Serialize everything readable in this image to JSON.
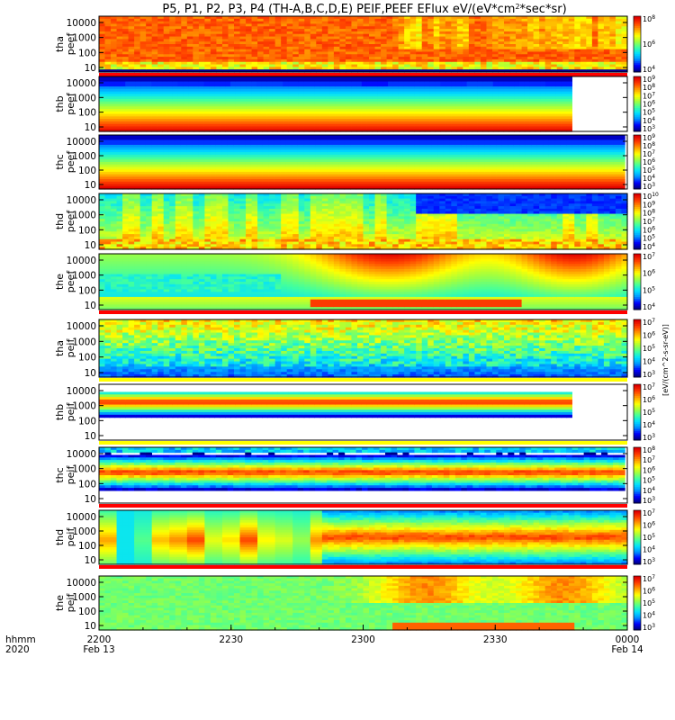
{
  "chart_data": {
    "type": "heatmap",
    "title": "P5, P1, P2, P3, P4 (TH-A,B,C,D,E) PEIF,PEEF EFlux eV/(eV*cm",
    "title_sup": "2",
    "title_tail": "*sec*sr)",
    "x_corner_label": [
      "hhmm",
      "2020"
    ],
    "x_ticks": [
      {
        "label": "2200",
        "sub": "Feb 13",
        "minutes": 0
      },
      {
        "label": "2230",
        "sub": "",
        "minutes": 30
      },
      {
        "label": "2300",
        "sub": "",
        "minutes": 60
      },
      {
        "label": "2330",
        "sub": "",
        "minutes": 90
      },
      {
        "label": "0000",
        "sub": "Feb 14",
        "minutes": 120
      }
    ],
    "x_range_minutes": [
      0,
      120
    ],
    "y_scale": "log",
    "y_ticks": [
      "10",
      "100",
      "1000",
      "10000"
    ],
    "colormap": [
      "#000080",
      "#0000ff",
      "#0090ff",
      "#00e0ff",
      "#40ffa0",
      "#a0ff40",
      "#ffff00",
      "#ffa000",
      "#ff4000",
      "#e00000"
    ],
    "colorbar_label": "[eV/(cm^2-s-sr-eV)]",
    "panels": [
      {
        "ylabel": [
          "tha",
          "peef"
        ],
        "colorbar_exps": [
          4,
          6,
          8
        ],
        "data_end": 1.0,
        "pattern": "hot_top",
        "strip_below": "#ff0000"
      },
      {
        "ylabel": [
          "thb",
          "peef"
        ],
        "colorbar_exps": [
          3,
          4,
          5,
          6,
          7,
          8,
          9
        ],
        "data_end": 0.895,
        "pattern": "bands_flat",
        "strip_below": ""
      },
      {
        "ylabel": [
          "thc",
          "peef"
        ],
        "colorbar_exps": [
          3,
          4,
          5,
          6,
          7,
          8,
          9
        ],
        "data_end": 0.995,
        "pattern": "bands_flat_full",
        "strip_below": ""
      },
      {
        "ylabel": [
          "thd",
          "peef"
        ],
        "colorbar_exps": [
          4,
          5,
          6,
          7,
          8,
          9,
          10
        ],
        "data_end": 1.0,
        "pattern": "thd_peef",
        "strip_below": ""
      },
      {
        "ylabel": [
          "the",
          "peef"
        ],
        "colorbar_exps": [
          4,
          5,
          6,
          7
        ],
        "data_end": 1.0,
        "pattern": "the_peef",
        "strip_below": "#ff0000"
      },
      {
        "ylabel": [
          "tha",
          "peif"
        ],
        "colorbar_exps": [
          3,
          4,
          5,
          6,
          7
        ],
        "data_end": 1.0,
        "pattern": "noisy_blue",
        "strip_below": "#ffff00"
      },
      {
        "ylabel": [
          "thb",
          "peif"
        ],
        "colorbar_exps": [
          3,
          4,
          5,
          6,
          7
        ],
        "data_end": 0.895,
        "pattern": "thb_peif",
        "strip_below": "#ffff00"
      },
      {
        "ylabel": [
          "thc",
          "peif"
        ],
        "colorbar_exps": [
          3,
          4,
          5,
          6,
          7,
          8
        ],
        "data_end": 0.995,
        "pattern": "thc_peif",
        "strip_below": "#ff0000"
      },
      {
        "ylabel": [
          "thd",
          "peif"
        ],
        "colorbar_exps": [
          3,
          4,
          5,
          6,
          7
        ],
        "data_end": 1.0,
        "pattern": "thd_peif",
        "strip_below": "#ff0000"
      },
      {
        "ylabel": [
          "the",
          "peif"
        ],
        "colorbar_exps": [
          3,
          4,
          5,
          6,
          7
        ],
        "data_end": 1.0,
        "pattern": "the_peif",
        "strip_below": ""
      }
    ]
  }
}
